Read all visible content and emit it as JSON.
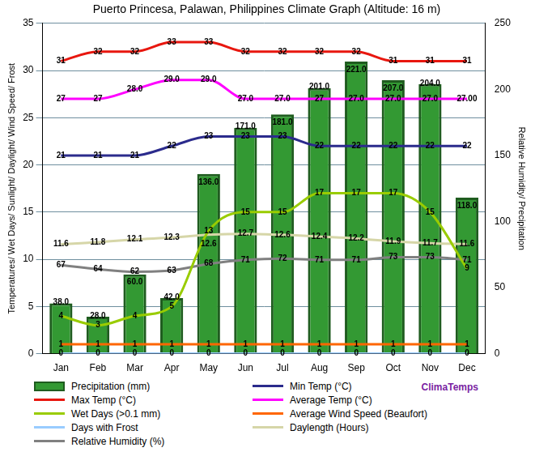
{
  "chart_data": {
    "type": "bar",
    "title": "Puerto Princesa, Palawan, Philippines Climate Graph (Altitude: 16 m)",
    "y_label": "Temperatures/ Wet Days/ Sunlight/ Daylight/ Wind Speed/ Frost",
    "y2_label": "Relative Humidity/ Precipitation",
    "annotations": [
      "ClimaTemps"
    ],
    "categories": [
      "Jan",
      "Feb",
      "Mar",
      "Apr",
      "May",
      "Jun",
      "Jul",
      "Aug",
      "Sep",
      "Oct",
      "Nov",
      "Dec"
    ],
    "ylim": [
      0,
      35
    ],
    "yticks": [
      0,
      5,
      10,
      15,
      20,
      25,
      30,
      35
    ],
    "y2lim": [
      0,
      250
    ],
    "y2ticks": [
      0,
      50,
      100,
      150,
      200,
      250
    ],
    "grid": true,
    "legend": "bottom",
    "data_labels": true,
    "series": [
      {
        "name": "Precipitation (mm)",
        "type": "bar",
        "color": "#339933",
        "axis": "y2",
        "values": [
          38,
          28,
          60,
          42,
          136,
          171,
          181,
          201,
          221,
          207,
          204,
          118
        ],
        "value_labels": [
          "38.0",
          "28.0",
          "60.0",
          "42.0",
          "136.0",
          "171.0",
          "181.0",
          "201.0",
          "221.0",
          "207.0",
          "204.0",
          "118.0"
        ]
      },
      {
        "name": "Min Temp (°C)",
        "type": "line",
        "color": "#2b2b8c",
        "values": [
          21,
          21,
          21,
          22,
          23,
          23,
          23,
          22,
          22,
          22,
          22,
          22
        ]
      },
      {
        "name": "Max Temp (°C)",
        "type": "line",
        "color": "#e8170f",
        "values": [
          31,
          32,
          32,
          33,
          33,
          32,
          32,
          32,
          32,
          31,
          31,
          31
        ]
      },
      {
        "name": "Average Temp (°C)",
        "type": "line",
        "color": "#ff00ff",
        "values": [
          27,
          27,
          28,
          29,
          29,
          27,
          27,
          27,
          27,
          27,
          27,
          27
        ],
        "value_labels": [
          "27",
          "27",
          "28.0",
          "29.0",
          "29.0",
          "27.0",
          "27.0",
          "27",
          "27.0",
          "27.0",
          "27.0",
          "27.00"
        ]
      },
      {
        "name": "Wet Days (>0.1 mm)",
        "type": "line",
        "color": "#99cc00",
        "values": [
          4,
          3,
          4,
          5,
          13,
          15,
          15,
          17,
          17,
          17,
          15,
          9
        ]
      },
      {
        "name": "Average Wind Speed (Beaufort)",
        "type": "line",
        "color": "#ff6600",
        "values": [
          1,
          1,
          1,
          1,
          1,
          1,
          1,
          1,
          1,
          1,
          1,
          1
        ]
      },
      {
        "name": "Days with Frost",
        "type": "line",
        "color": "#99ccff",
        "values": [
          0,
          0,
          0,
          0,
          0,
          0,
          0,
          0,
          0,
          0,
          0,
          0
        ]
      },
      {
        "name": "Daylength (Hours)",
        "type": "line",
        "color": "#d6d6a8",
        "values": [
          11.6,
          11.8,
          12.1,
          12.3,
          12.6,
          12.7,
          12.6,
          12.4,
          12.2,
          11.9,
          11.7,
          11.6
        ]
      },
      {
        "name": "Relative Humidity (%)",
        "type": "line",
        "color": "#808080",
        "axis": "y2",
        "values": [
          67,
          64,
          62,
          63,
          68,
          71,
          72,
          71,
          71,
          73,
          73,
          71
        ]
      }
    ]
  }
}
